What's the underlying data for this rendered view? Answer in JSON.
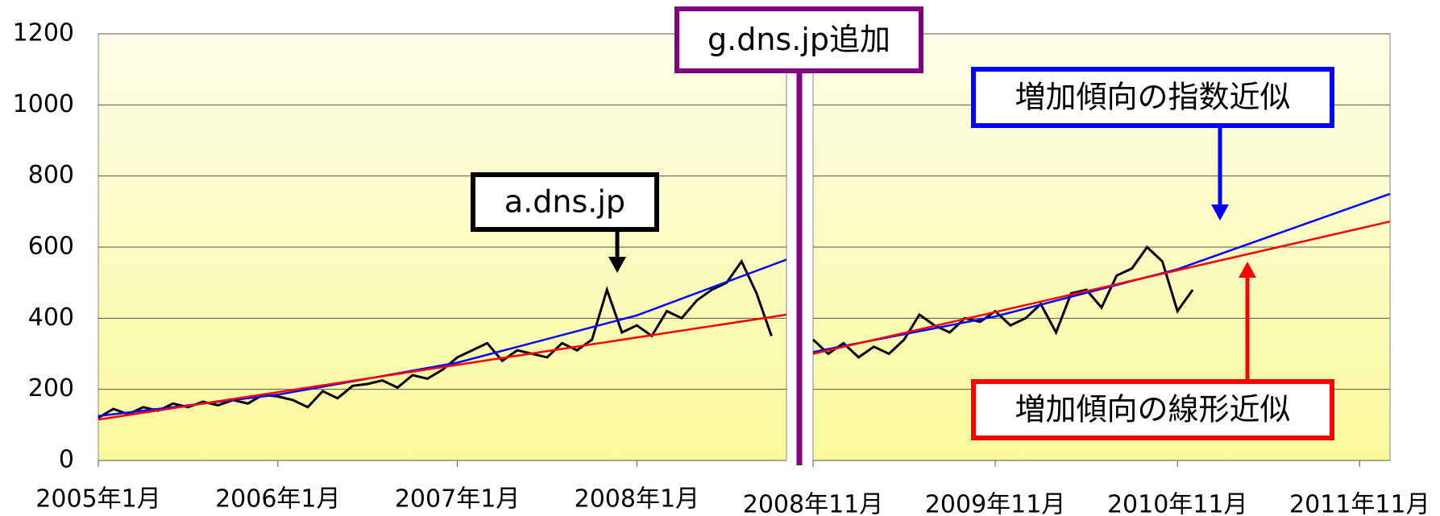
{
  "chart_data": [
    {
      "type": "line",
      "xlim": [
        "2005-01",
        "2008-11"
      ],
      "xticks": [
        {
          "value": "2005-01",
          "label": "2005年1月"
        },
        {
          "value": "2006-01",
          "label": "2006年1月"
        },
        {
          "value": "2007-01",
          "label": "2007年1月"
        },
        {
          "value": "2008-01",
          "label": "2008年1月"
        }
      ],
      "ylim": [
        0,
        1200
      ],
      "yticks": [
        0,
        200,
        400,
        600,
        800,
        1000,
        1200
      ],
      "grid": true,
      "annotation": "a.dns.jp",
      "series": [
        {
          "color": "#000000",
          "x": [
            "2005-01",
            "2005-02",
            "2005-03",
            "2005-04",
            "2005-05",
            "2005-06",
            "2005-07",
            "2005-08",
            "2005-09",
            "2005-10",
            "2005-11",
            "2005-12",
            "2006-01",
            "2006-02",
            "2006-03",
            "2006-04",
            "2006-05",
            "2006-06",
            "2006-07",
            "2006-08",
            "2006-09",
            "2006-10",
            "2006-11",
            "2006-12",
            "2007-01",
            "2007-02",
            "2007-03",
            "2007-04",
            "2007-05",
            "2007-06",
            "2007-07",
            "2007-08",
            "2007-09",
            "2007-10",
            "2007-11",
            "2007-12",
            "2008-01",
            "2008-02",
            "2008-03",
            "2008-04",
            "2008-05",
            "2008-06",
            "2008-07",
            "2008-08",
            "2008-09",
            "2008-10"
          ],
          "values": [
            120,
            145,
            130,
            150,
            140,
            160,
            150,
            165,
            155,
            170,
            160,
            185,
            180,
            170,
            150,
            195,
            175,
            210,
            215,
            225,
            205,
            240,
            230,
            255,
            290,
            310,
            330,
            280,
            310,
            300,
            290,
            330,
            310,
            340,
            480,
            360,
            380,
            350,
            420,
            400,
            450,
            480,
            500,
            560,
            470,
            350
          ]
        },
        {
          "name": "増加傾向の指数近似",
          "color": "#0000ff",
          "x": [
            "2005-01",
            "2006-01",
            "2007-01",
            "2008-01",
            "2008-11"
          ],
          "values": [
            125,
            185,
            275,
            408,
            565
          ]
        },
        {
          "name": "増加傾向の線形近似",
          "color": "#ff0000",
          "x": [
            "2005-01",
            "2008-11"
          ],
          "values": [
            115,
            410
          ]
        }
      ]
    },
    {
      "type": "line",
      "xlim": [
        "2008-11",
        "2012-01"
      ],
      "xticks": [
        {
          "value": "2008-11",
          "label": "2008年11月"
        },
        {
          "value": "2009-11",
          "label": "2009年11月"
        },
        {
          "value": "2010-11",
          "label": "2010年11月"
        },
        {
          "value": "2011-11",
          "label": "2011年11月"
        }
      ],
      "ylim": [
        0,
        1200
      ],
      "yticks": [
        0,
        200,
        400,
        600,
        800,
        1000,
        1200
      ],
      "grid": true,
      "annotation": "g.dns.jp追加",
      "series": [
        {
          "color": "#000000",
          "x": [
            "2008-11",
            "2008-12",
            "2009-01",
            "2009-02",
            "2009-03",
            "2009-04",
            "2009-05",
            "2009-06",
            "2009-07",
            "2009-08",
            "2009-09",
            "2009-10",
            "2009-11",
            "2009-12",
            "2010-01",
            "2010-02",
            "2010-03",
            "2010-04",
            "2010-05",
            "2010-06",
            "2010-07",
            "2010-08",
            "2010-09",
            "2010-10",
            "2010-11",
            "2010-12"
          ],
          "values": [
            340,
            300,
            330,
            290,
            320,
            300,
            340,
            410,
            380,
            360,
            400,
            390,
            420,
            380,
            400,
            440,
            360,
            470,
            480,
            430,
            520,
            540,
            600,
            560,
            420,
            480
          ]
        },
        {
          "color": "#0000ff",
          "x": [
            "2008-11",
            "2009-11",
            "2010-11",
            "2012-01"
          ],
          "values": [
            305,
            405,
            538,
            750
          ]
        },
        {
          "color": "#ff0000",
          "x": [
            "2008-11",
            "2012-01"
          ],
          "values": [
            300,
            672
          ]
        }
      ]
    }
  ]
}
